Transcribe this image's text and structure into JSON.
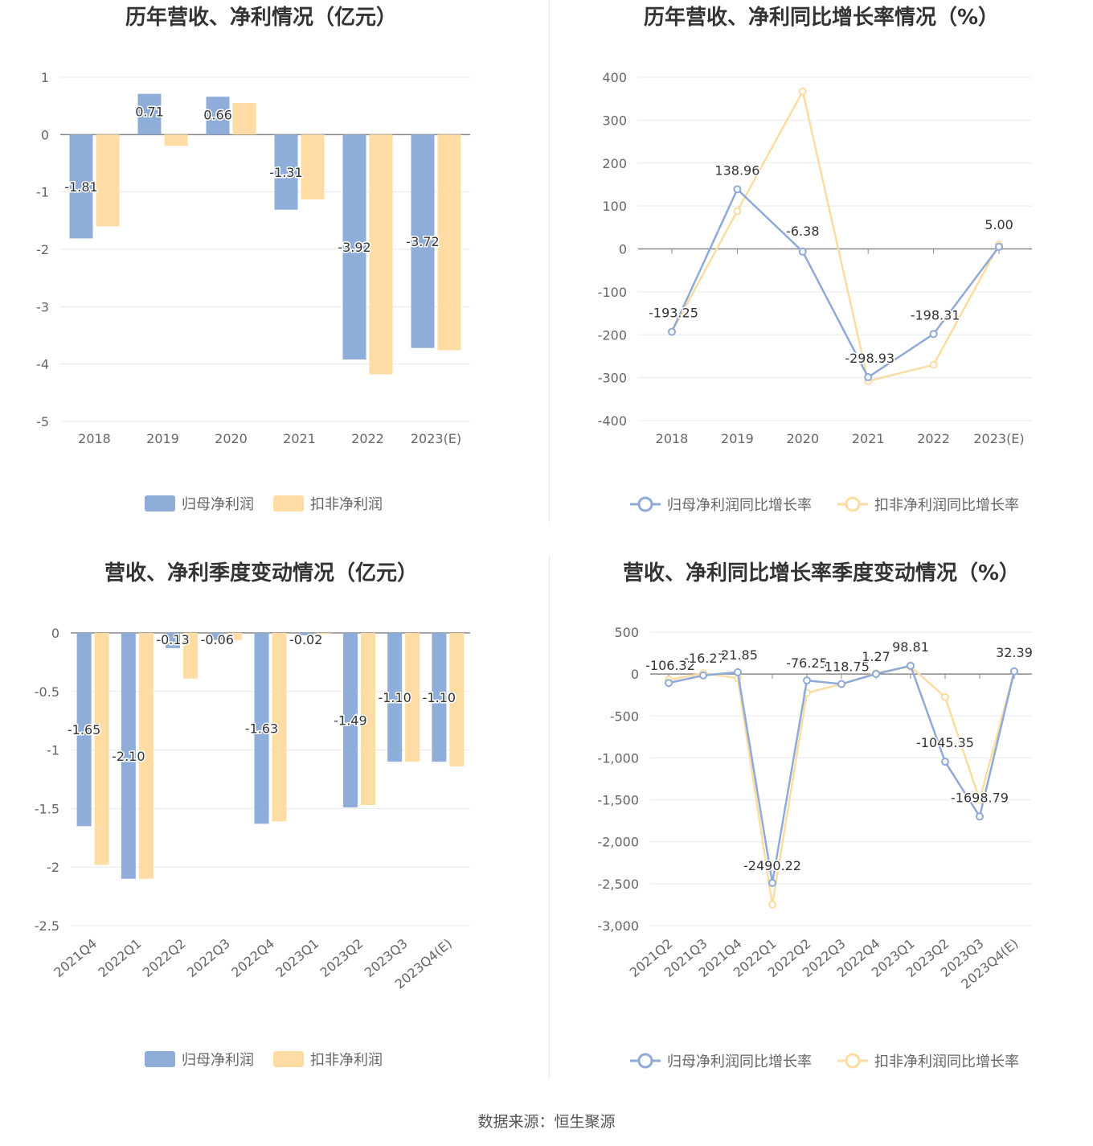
{
  "colors": {
    "primary": "#8eadd9",
    "secondary": "#ffdca3",
    "line_primary": "#8eaad8",
    "line_secondary": "#fcdca0"
  },
  "legend": {
    "bar_primary": "归母净利润",
    "bar_secondary": "扣非净利润",
    "line_primary": "归母净利润同比增长率",
    "line_secondary": "扣非净利润同比增长率"
  },
  "source": "数据来源：恒生聚源",
  "chart_data": [
    {
      "type": "bar",
      "title": "历年营收、净利情况（亿元）",
      "categories": [
        "2018",
        "2019",
        "2020",
        "2021",
        "2022",
        "2023(E)"
      ],
      "ylim": [
        -5,
        1
      ],
      "yticks": [
        1,
        0,
        -1,
        -2,
        -3,
        -4,
        -5
      ],
      "ytick_labels": [
        "1",
        "0",
        "-1",
        "-2",
        "-3",
        "-4",
        "-5"
      ],
      "series": [
        {
          "name": "归母净利润",
          "values": [
            -1.81,
            0.71,
            0.66,
            -1.31,
            -3.92,
            -3.72
          ],
          "labels": [
            "-1.81",
            "0.71",
            "0.66",
            "-1.31",
            "-3.92",
            "-3.72"
          ]
        },
        {
          "name": "扣非净利润",
          "values": [
            -1.6,
            -0.2,
            0.55,
            -1.13,
            -4.18,
            -3.76
          ]
        }
      ],
      "grid": true,
      "legend_position": "bottom"
    },
    {
      "type": "line",
      "title": "历年营收、净利同比增长率情况（%）",
      "categories": [
        "2018",
        "2019",
        "2020",
        "2021",
        "2022",
        "2023(E)"
      ],
      "ylim": [
        -400,
        400
      ],
      "yticks": [
        400,
        300,
        200,
        100,
        0,
        -100,
        -200,
        -300,
        -400
      ],
      "ytick_labels": [
        "400",
        "300",
        "200",
        "100",
        "0",
        "-100",
        "-200",
        "-300",
        "-400"
      ],
      "series": [
        {
          "name": "归母净利润同比增长率",
          "values": [
            -193.25,
            138.96,
            -6.38,
            -298.93,
            -198.31,
            5.0
          ],
          "labels": [
            "-193.25",
            "138.96",
            "-6.38",
            "-298.93",
            "-198.31",
            "5.00"
          ]
        },
        {
          "name": "扣非净利润同比增长率",
          "values": [
            -193,
            88,
            367,
            -308,
            -270,
            10
          ]
        }
      ],
      "grid": true,
      "legend_position": "bottom"
    },
    {
      "type": "bar",
      "title": "营收、净利季度变动情况（亿元）",
      "categories": [
        "2021Q4",
        "2022Q1",
        "2022Q2",
        "2022Q3",
        "2022Q4",
        "2023Q1",
        "2023Q2",
        "2023Q3",
        "2023Q4(E)"
      ],
      "ylim": [
        -2.5,
        0
      ],
      "yticks": [
        0,
        -0.5,
        -1,
        -1.5,
        -2,
        -2.5
      ],
      "ytick_labels": [
        "0",
        "-0.5",
        "-1",
        "-1.5",
        "-2",
        "-2.5"
      ],
      "series": [
        {
          "name": "归母净利润",
          "values": [
            -1.65,
            -2.1,
            -0.13,
            -0.06,
            -1.63,
            -0.02,
            -1.49,
            -1.1,
            -1.1
          ],
          "labels": [
            "-1.65",
            "-2.10",
            "-0.13",
            "-0.06",
            "-1.63",
            "-0.02",
            "-1.49",
            "-1.10",
            "-1.10"
          ]
        },
        {
          "name": "扣非净利润",
          "values": [
            -1.98,
            -2.1,
            -0.39,
            -0.06,
            -1.61,
            -0.01,
            -1.47,
            -1.1,
            -1.14
          ]
        }
      ],
      "grid": true,
      "legend_position": "bottom"
    },
    {
      "type": "line",
      "title": "营收、净利同比增长率季度变动情况（%）",
      "categories": [
        "2021Q2",
        "2021Q3",
        "2021Q4",
        "2022Q1",
        "2022Q2",
        "2022Q3",
        "2022Q4",
        "2023Q1",
        "2023Q2",
        "2023Q3",
        "2023Q4(E)"
      ],
      "ylim": [
        -3000,
        500
      ],
      "yticks": [
        500,
        0,
        -500,
        -1000,
        -1500,
        -2000,
        -2500,
        -3000
      ],
      "ytick_labels": [
        "500",
        "0",
        "-500",
        "-1,000",
        "-1,500",
        "-2,000",
        "-2,500",
        "-3,000"
      ],
      "series": [
        {
          "name": "归母净利润同比增长率",
          "values": [
            -106.32,
            -16.27,
            21.85,
            -2490.22,
            -76.25,
            -118.75,
            1.27,
            98.81,
            -1045.35,
            -1698.79,
            32.39
          ],
          "labels": [
            "-106.32",
            "-16.27",
            "21.85",
            "-2490.22",
            "-76.25",
            "-118.75",
            "1.27",
            "98.81",
            "-1045.35",
            "-1698.79",
            "32.39"
          ]
        },
        {
          "name": "扣非净利润同比增长率",
          "values": [
            -70,
            10,
            -50,
            -2750,
            -225,
            -120,
            10,
            90,
            -275,
            -1500,
            30
          ]
        }
      ],
      "grid": true,
      "legend_position": "bottom"
    }
  ]
}
